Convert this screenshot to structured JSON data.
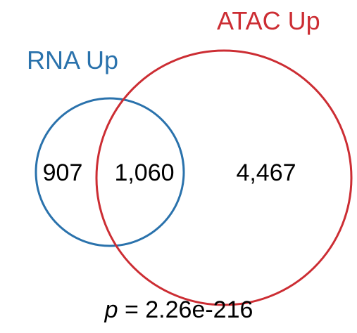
{
  "venn": {
    "sets": [
      {
        "name": "RNA Up",
        "color": "#2a72ac"
      },
      {
        "name": "ATAC Up",
        "color": "#cc2d33"
      }
    ],
    "regions": {
      "rna_only": "907",
      "overlap": "1,060",
      "atac_only": "4,467"
    },
    "pvalue": {
      "symbol": "p",
      "text": " = 2.26e-216"
    }
  }
}
